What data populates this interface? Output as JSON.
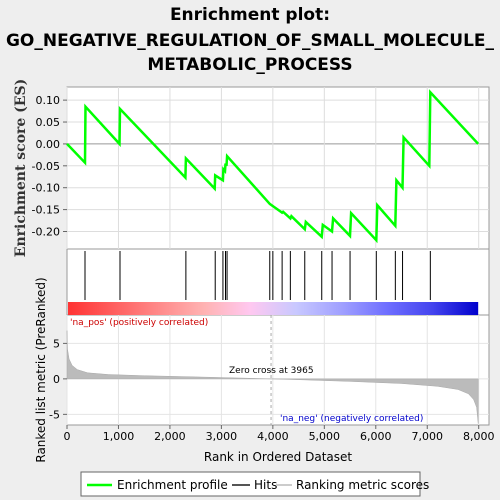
{
  "chart_data": {
    "type": "line",
    "title_lines": [
      "Enrichment plot:",
      "GO_NEGATIVE_REGULATION_OF_SMALL_MOLECULE_",
      "METABOLIC_PROCESS"
    ],
    "es_panel": {
      "ylabel": "Enrichment score (ES)",
      "ylim": [
        -0.24,
        0.13
      ],
      "yticks": [
        0.1,
        0.05,
        0.0,
        -0.05,
        -0.1,
        -0.15,
        -0.2
      ],
      "ytick_labels": [
        "0.10",
        "0.05",
        "0.00",
        "-0.05",
        "-0.10",
        "-0.15",
        "-0.20"
      ],
      "series": {
        "name": "Enrichment profile",
        "color": "#00ff00",
        "points": [
          [
            0,
            0.0
          ],
          [
            350,
            -0.043
          ],
          [
            360,
            0.085
          ],
          [
            1020,
            0.0
          ],
          [
            1030,
            0.08
          ],
          [
            2300,
            -0.077
          ],
          [
            2310,
            -0.033
          ],
          [
            2870,
            -0.102
          ],
          [
            2880,
            -0.072
          ],
          [
            3030,
            -0.083
          ],
          [
            3040,
            -0.058
          ],
          [
            3070,
            -0.062
          ],
          [
            3080,
            -0.045
          ],
          [
            3100,
            -0.05
          ],
          [
            3110,
            -0.028
          ],
          [
            3940,
            -0.137
          ],
          [
            4000,
            -0.142
          ],
          [
            4180,
            -0.157
          ],
          [
            4200,
            -0.155
          ],
          [
            4340,
            -0.17
          ],
          [
            4360,
            -0.165
          ],
          [
            4620,
            -0.195
          ],
          [
            4640,
            -0.178
          ],
          [
            4950,
            -0.212
          ],
          [
            4970,
            -0.185
          ],
          [
            5150,
            -0.2
          ],
          [
            5170,
            -0.17
          ],
          [
            5500,
            -0.21
          ],
          [
            5520,
            -0.158
          ],
          [
            6010,
            -0.22
          ],
          [
            6030,
            -0.14
          ],
          [
            6380,
            -0.187
          ],
          [
            6400,
            -0.083
          ],
          [
            6520,
            -0.1
          ],
          [
            6540,
            0.015
          ],
          [
            7040,
            -0.05
          ],
          [
            7060,
            0.118
          ],
          [
            7990,
            0.0
          ]
        ]
      }
    },
    "hits": [
      350,
      1030,
      2310,
      2880,
      3030,
      3080,
      3110,
      3940,
      4000,
      4180,
      4340,
      4620,
      4950,
      5150,
      5500,
      6010,
      6380,
      6520,
      7060
    ],
    "heatmap_stops": [
      "#ff3333",
      "#ff5f5f",
      "#ff8a8a",
      "#ffb3b3",
      "#ffc8f0",
      "#c8c8ff",
      "#a0a0ff",
      "#6e6eff",
      "#4444ee",
      "#0000cc"
    ],
    "metric_panel": {
      "ylabel": "Ranked list metric (PreRanked)",
      "ylim": [
        -6.5,
        9
      ],
      "yticks": [
        5,
        0,
        -5
      ],
      "ytick_labels": [
        "5",
        "0",
        "-5"
      ],
      "curve": [
        [
          0,
          6.8
        ],
        [
          10,
          4.2
        ],
        [
          40,
          2.8
        ],
        [
          100,
          1.9
        ],
        [
          200,
          1.3
        ],
        [
          400,
          0.85
        ],
        [
          800,
          0.62
        ],
        [
          1500,
          0.45
        ],
        [
          2500,
          0.28
        ],
        [
          3500,
          0.1
        ],
        [
          3965,
          0.0
        ],
        [
          4500,
          -0.12
        ],
        [
          5500,
          -0.35
        ],
        [
          6500,
          -0.65
        ],
        [
          7200,
          -1.05
        ],
        [
          7600,
          -1.5
        ],
        [
          7800,
          -2.1
        ],
        [
          7900,
          -2.9
        ],
        [
          7960,
          -4.0
        ],
        [
          7990,
          -6.3
        ]
      ]
    },
    "xaxis": {
      "xlabel": "Rank in Ordered Dataset",
      "xlim": [
        0,
        8200
      ],
      "xticks": [
        0,
        1000,
        2000,
        3000,
        4000,
        5000,
        6000,
        7000,
        8000
      ],
      "xtick_labels": [
        "0",
        "1,000",
        "2,000",
        "3,000",
        "4,000",
        "5,000",
        "6,000",
        "7,000",
        "8,000"
      ]
    },
    "annotations": {
      "na_pos": "'na_pos' (positively correlated)",
      "na_neg": "'na_neg' (negatively correlated)",
      "zero_cross": "Zero cross at 3965",
      "zero_cross_value": 3965
    },
    "legend": [
      {
        "label": "Enrichment profile",
        "color": "#00ff00"
      },
      {
        "label": "Hits",
        "color": "#555555"
      },
      {
        "label": "Ranking metric scores",
        "color": "#cccccc"
      }
    ],
    "colors": {
      "pos": "#ff0000",
      "neg": "#0000cc",
      "metric_fill": "#bbbbbb"
    }
  }
}
